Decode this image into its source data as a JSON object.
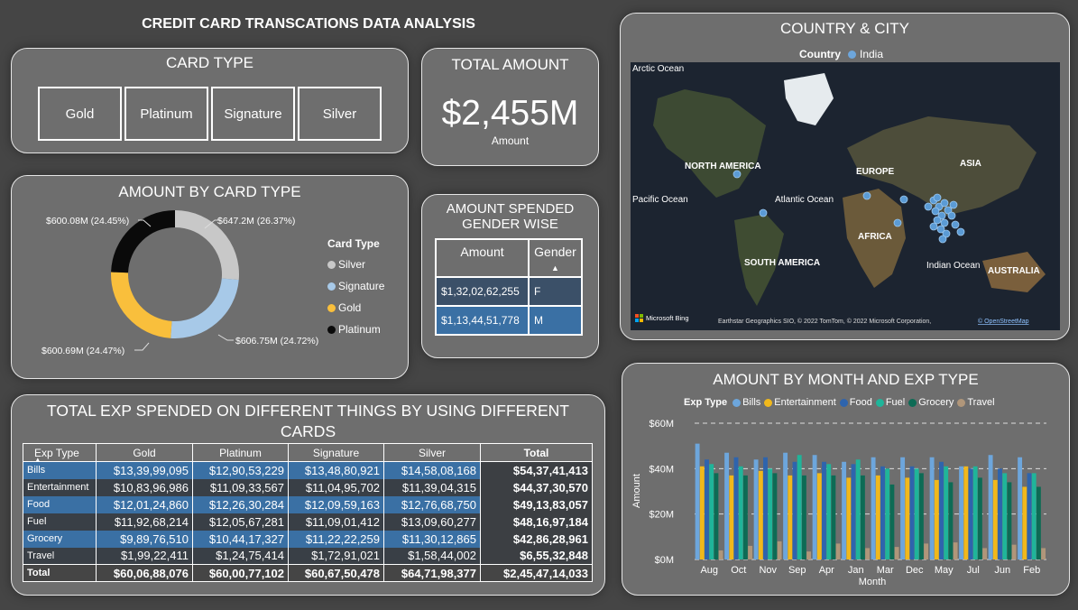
{
  "header": {
    "title": "CREDIT CARD TRANSCATIONS DATA ANALYSIS"
  },
  "card_type": {
    "title": "CARD TYPE",
    "options": [
      "Gold",
      "Platinum",
      "Signature",
      "Silver"
    ]
  },
  "total_amount": {
    "title": "TOTAL AMOUNT",
    "value": "$2,455M",
    "label": "Amount"
  },
  "donut": {
    "title": "AMOUNT BY CARD TYPE",
    "legend_title": "Card Type",
    "legend": [
      "Silver",
      "Signature",
      "Gold",
      "Platinum"
    ],
    "labels": {
      "silver": "$647.2M (26.37%)",
      "signature": "$606.75M (24.72%)",
      "gold": "$600.69M (24.47%)",
      "platinum": "$600.08M (24.45%)"
    }
  },
  "gender": {
    "title": "AMOUNT SPENDED GENDER WISE",
    "col_amount": "Amount",
    "col_gender": "Gender",
    "rows": [
      {
        "amount": "$1,32,02,62,255",
        "gender": "F"
      },
      {
        "amount": "$1,13,44,51,778",
        "gender": "M"
      }
    ]
  },
  "map": {
    "title": "COUNTRY & CITY",
    "legend_label": "Country",
    "legend_value": "India",
    "labels": {
      "arctic": "Arctic Ocean",
      "north_america": "NORTH AMERICA",
      "europe": "EUROPE",
      "asia": "ASIA",
      "pacific": "Pacific Ocean",
      "atlantic": "Atlantic Ocean",
      "africa": "AFRICA",
      "south_america": "SOUTH AMERICA",
      "indian": "Indian Ocean",
      "australia": "AUSTRALIA"
    },
    "bing": "Microsoft Bing",
    "credit": "Earthstar Geographics SIO, © 2022 TomTom, © 2022 Microsoft Corporation,",
    "credit_link": "© OpenStreetMap"
  },
  "exp_table": {
    "title": "TOTAL EXP SPENDED ON DIFFERENT THINGS BY USING DIFFERENT CARDS",
    "headers": [
      "Exp Type",
      "Gold",
      "Platinum",
      "Signature",
      "Silver",
      "Total"
    ],
    "rows": [
      [
        "Bills",
        "$13,39,99,095",
        "$12,90,53,229",
        "$13,48,80,921",
        "$14,58,08,168",
        "$54,37,41,413"
      ],
      [
        "Entertainment",
        "$10,83,96,986",
        "$11,09,33,567",
        "$11,04,95,702",
        "$11,39,04,315",
        "$44,37,30,570"
      ],
      [
        "Food",
        "$12,01,24,860",
        "$12,26,30,284",
        "$12,09,59,163",
        "$12,76,68,750",
        "$49,13,83,057"
      ],
      [
        "Fuel",
        "$11,92,68,214",
        "$12,05,67,281",
        "$11,09,01,412",
        "$13,09,60,277",
        "$48,16,97,184"
      ],
      [
        "Grocery",
        "$9,89,76,510",
        "$10,44,17,327",
        "$11,22,22,259",
        "$11,30,12,865",
        "$42,86,28,961"
      ],
      [
        "Travel",
        "$1,99,22,411",
        "$1,24,75,414",
        "$1,72,91,021",
        "$1,58,44,002",
        "$6,55,32,848"
      ],
      [
        "Total",
        "$60,06,88,076",
        "$60,00,77,102",
        "$60,67,50,478",
        "$64,71,98,377",
        "$2,45,47,14,033"
      ]
    ]
  },
  "chart_data": [
    {
      "type": "pie",
      "title": "AMOUNT BY CARD TYPE",
      "legend_title": "Card Type",
      "categories": [
        "Silver",
        "Signature",
        "Gold",
        "Platinum"
      ],
      "values": [
        647.2,
        606.75,
        600.69,
        600.08
      ],
      "colors": [
        "#c8c8c8",
        "#a7c9e8",
        "#f9bf3c",
        "#0a0a0a"
      ]
    },
    {
      "type": "bar",
      "title": "AMOUNT BY MONTH AND EXP TYPE",
      "xlabel": "Month",
      "ylabel": "Amount",
      "legend_title": "Exp Type",
      "y_ticks": [
        "$0M",
        "$20M",
        "$40M",
        "$60M"
      ],
      "ylim": [
        0,
        60
      ],
      "categories": [
        "Aug",
        "Oct",
        "Nov",
        "Sep",
        "Apr",
        "Jan",
        "Mar",
        "Dec",
        "May",
        "Jul",
        "Jun",
        "Feb"
      ],
      "series": [
        {
          "name": "Bills",
          "color": "#6da6dc",
          "values": [
            51,
            47,
            44,
            47,
            46,
            43,
            45,
            45,
            45,
            41,
            46,
            45
          ]
        },
        {
          "name": "Entertainment",
          "color": "#f0b81c",
          "values": [
            41,
            37,
            39,
            37,
            38,
            36,
            37,
            36,
            35,
            41,
            35,
            32
          ]
        },
        {
          "name": "Food",
          "color": "#2e64ad",
          "values": [
            44,
            45,
            45,
            43,
            43,
            42,
            41,
            41,
            43,
            40,
            40,
            38
          ]
        },
        {
          "name": "Fuel",
          "color": "#1fb59a",
          "values": [
            42,
            41,
            40,
            46,
            42,
            44,
            40,
            40,
            41,
            41,
            38,
            38
          ]
        },
        {
          "name": "Grocery",
          "color": "#0d6b55",
          "values": [
            38,
            37,
            38,
            37,
            37,
            37,
            33,
            38,
            34,
            36,
            34,
            32
          ]
        },
        {
          "name": "Travel",
          "color": "#b0967a",
          "values": [
            4,
            6,
            8,
            3.5,
            7,
            5,
            5.5,
            7,
            7.5,
            5,
            6.5,
            5
          ]
        }
      ]
    }
  ]
}
